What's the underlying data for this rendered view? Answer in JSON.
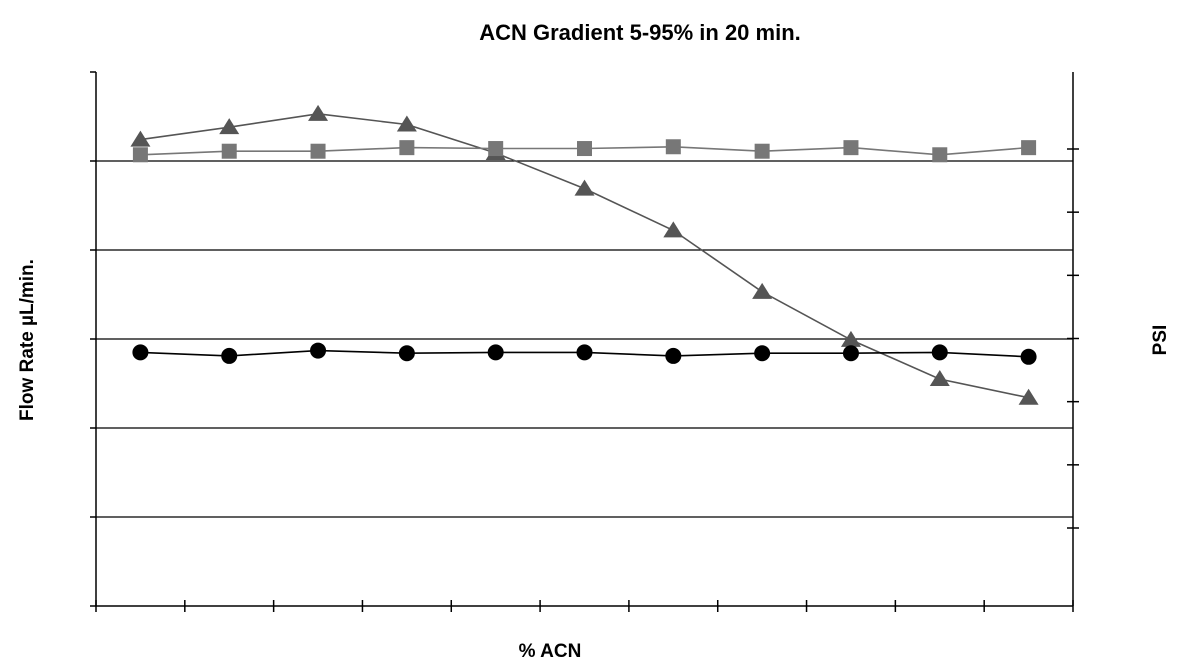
{
  "chart_data": {
    "type": "line",
    "title": "ACN Gradient 5-95% in 20 min.",
    "xlabel": "% ACN",
    "ylabel": "Flow Rate µL/min.",
    "y2label": "PSI",
    "grid": true,
    "legend": "none",
    "x": [
      1,
      2,
      3,
      4,
      5,
      6,
      7,
      8,
      9,
      10,
      11
    ],
    "x_range": [
      0.5,
      11.5
    ],
    "ylim": [
      0,
      6
    ],
    "y_major_gridlines": [
      1,
      2,
      3,
      4,
      5
    ],
    "y2_ticks": 7,
    "series": [
      {
        "marker": "triangle",
        "color": "#555555",
        "values": [
          5.24,
          5.38,
          5.53,
          5.41,
          5.09,
          4.69,
          4.22,
          3.53,
          2.99,
          2.55,
          2.34
        ]
      },
      {
        "marker": "square",
        "color": "#777777",
        "values": [
          5.07,
          5.11,
          5.11,
          5.15,
          5.14,
          5.14,
          5.16,
          5.11,
          5.15,
          5.07,
          5.15
        ]
      },
      {
        "marker": "circle",
        "color": "#000000",
        "values": [
          2.85,
          2.81,
          2.87,
          2.84,
          2.85,
          2.85,
          2.81,
          2.84,
          2.84,
          2.85,
          2.8
        ]
      }
    ]
  }
}
